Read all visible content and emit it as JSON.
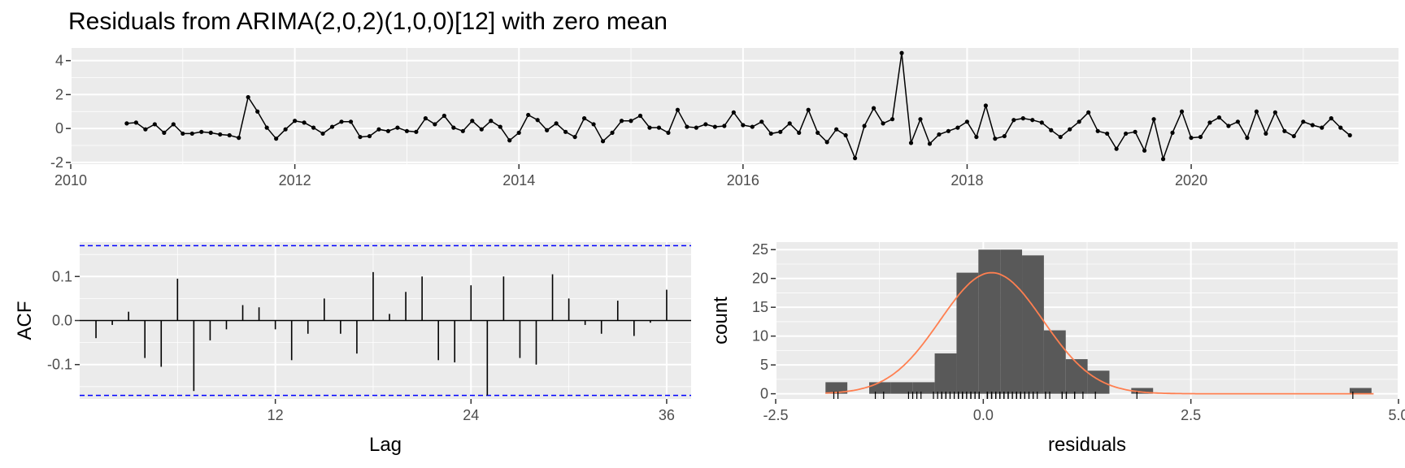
{
  "title": "Residuals from ARIMA(2,0,2)(1,0,0)[12] with zero mean",
  "colors": {
    "panel": "#ebebeb",
    "grid": "#ffffff",
    "line": "#000000",
    "bar": "#595959",
    "ci": "#0000ff",
    "density": "#ff7f50"
  },
  "chart_data": [
    {
      "type": "line",
      "xlabel": "",
      "ylabel": "",
      "xlim": [
        2010,
        2021.85
      ],
      "ylim": [
        -2.1,
        4.75
      ],
      "xticks": [
        2010,
        2012,
        2014,
        2016,
        2018,
        2020
      ],
      "xtick_labels": [
        "2010",
        "2012",
        "2014",
        "2016",
        "2018",
        "2020"
      ],
      "yticks": [
        -2,
        0,
        2,
        4
      ],
      "ytick_labels": [
        "-2",
        "0",
        "2",
        "4"
      ],
      "start": 2010.5,
      "step": 0.08333,
      "values": [
        0.3,
        0.35,
        -0.05,
        0.25,
        -0.25,
        0.25,
        -0.3,
        -0.3,
        -0.2,
        -0.25,
        -0.35,
        -0.4,
        -0.55,
        1.85,
        1.0,
        0.05,
        -0.6,
        -0.05,
        0.45,
        0.35,
        0.05,
        -0.3,
        0.1,
        0.4,
        0.4,
        -0.5,
        -0.45,
        -0.05,
        -0.15,
        0.05,
        -0.15,
        -0.2,
        0.6,
        0.25,
        0.75,
        0.05,
        -0.15,
        0.45,
        -0.05,
        0.45,
        0.1,
        -0.7,
        -0.25,
        0.8,
        0.5,
        -0.1,
        0.3,
        -0.2,
        -0.5,
        0.6,
        0.25,
        -0.75,
        -0.25,
        0.45,
        0.45,
        0.75,
        0.05,
        0.05,
        -0.25,
        1.1,
        0.1,
        0.05,
        0.25,
        0.1,
        0.15,
        0.95,
        0.2,
        0.1,
        0.4,
        -0.3,
        -0.2,
        0.3,
        -0.25,
        1.1,
        -0.25,
        -0.8,
        -0.05,
        -0.4,
        -1.75,
        0.15,
        1.2,
        0.3,
        0.55,
        4.45,
        -0.85,
        0.55,
        -0.9,
        -0.35,
        -0.15,
        0.05,
        0.4,
        -0.5,
        1.35,
        -0.6,
        -0.45,
        0.5,
        0.6,
        0.5,
        0.35,
        -0.1,
        -0.5,
        -0.05,
        0.4,
        0.95,
        -0.15,
        -0.3,
        -1.2,
        -0.3,
        -0.2,
        -1.3,
        0.55,
        -1.8,
        -0.25,
        1.0,
        -0.55,
        -0.5,
        0.35,
        0.65,
        0.15,
        0.4,
        -0.55,
        1.0,
        -0.3,
        0.95,
        -0.15,
        -0.45,
        0.4,
        0.2,
        0.05,
        0.6,
        0.05,
        -0.4
      ]
    },
    {
      "type": "bar",
      "xlabel": "Lag",
      "ylabel": "ACF",
      "xlim": [
        0,
        37.5
      ],
      "ylim": [
        -0.178,
        0.178
      ],
      "xticks": [
        12,
        24,
        36
      ],
      "xtick_labels": [
        "12",
        "24",
        "36"
      ],
      "yticks": [
        -0.1,
        0.0,
        0.1
      ],
      "ytick_labels": [
        "-0.1",
        "0.0",
        "0.1"
      ],
      "ci": [
        0.17,
        -0.17
      ],
      "lags": [
        1,
        2,
        3,
        4,
        5,
        6,
        7,
        8,
        9,
        10,
        11,
        12,
        13,
        14,
        15,
        16,
        17,
        18,
        19,
        20,
        21,
        22,
        23,
        24,
        25,
        26,
        27,
        28,
        29,
        30,
        31,
        32,
        33,
        34,
        35,
        36
      ],
      "values": [
        -0.04,
        -0.01,
        0.02,
        -0.085,
        -0.105,
        0.095,
        -0.16,
        -0.045,
        -0.02,
        0.035,
        0.03,
        -0.02,
        -0.09,
        -0.03,
        0.05,
        -0.03,
        -0.075,
        0.11,
        0.015,
        0.065,
        0.1,
        -0.09,
        -0.095,
        0.08,
        -0.17,
        0.1,
        -0.085,
        -0.1,
        0.105,
        0.05,
        -0.01,
        -0.03,
        0.045,
        -0.035,
        -0.005,
        0.07
      ]
    },
    {
      "type": "histogram",
      "xlabel": "residuals",
      "ylabel": "count",
      "xlim": [
        -2.5,
        5.0
      ],
      "ylim": [
        -0.9,
        26.3
      ],
      "xticks": [
        -2.5,
        0.0,
        2.5,
        5.0
      ],
      "xtick_labels": [
        "-2.5",
        "0.0",
        "2.5",
        "5.0"
      ],
      "yticks": [
        0,
        5,
        10,
        15,
        20,
        25
      ],
      "ytick_labels": [
        "0",
        "5",
        "10",
        "15",
        "20",
        "25"
      ],
      "bin_start": -1.9,
      "bin_width": 0.263,
      "counts": [
        2,
        0,
        2,
        2,
        2,
        7,
        21,
        25,
        25,
        24,
        11,
        6,
        4,
        0,
        1,
        0,
        0,
        0,
        0,
        0,
        0,
        0,
        0,
        0,
        1
      ],
      "density_curve": {
        "mean": 0.1,
        "peak": 21,
        "sd": 0.62
      },
      "rug": [
        -1.8,
        -1.75,
        -1.3,
        -1.2,
        -0.9,
        -0.85,
        -0.8,
        -0.75,
        -0.6,
        -0.55,
        -0.5,
        -0.5,
        -0.45,
        -0.45,
        -0.4,
        -0.35,
        -0.3,
        -0.3,
        -0.3,
        -0.25,
        -0.25,
        -0.25,
        -0.25,
        -0.2,
        -0.2,
        -0.15,
        -0.15,
        -0.15,
        -0.1,
        -0.1,
        -0.05,
        -0.05,
        -0.05,
        0.05,
        0.05,
        0.05,
        0.05,
        0.05,
        0.1,
        0.1,
        0.1,
        0.1,
        0.15,
        0.15,
        0.15,
        0.2,
        0.2,
        0.25,
        0.25,
        0.25,
        0.3,
        0.3,
        0.3,
        0.35,
        0.35,
        0.4,
        0.4,
        0.4,
        0.45,
        0.45,
        0.45,
        0.5,
        0.5,
        0.55,
        0.55,
        0.6,
        0.6,
        0.65,
        0.75,
        0.75,
        0.8,
        0.95,
        0.95,
        1.0,
        1.0,
        1.1,
        1.1,
        1.2,
        1.35,
        1.85,
        4.45
      ]
    }
  ]
}
